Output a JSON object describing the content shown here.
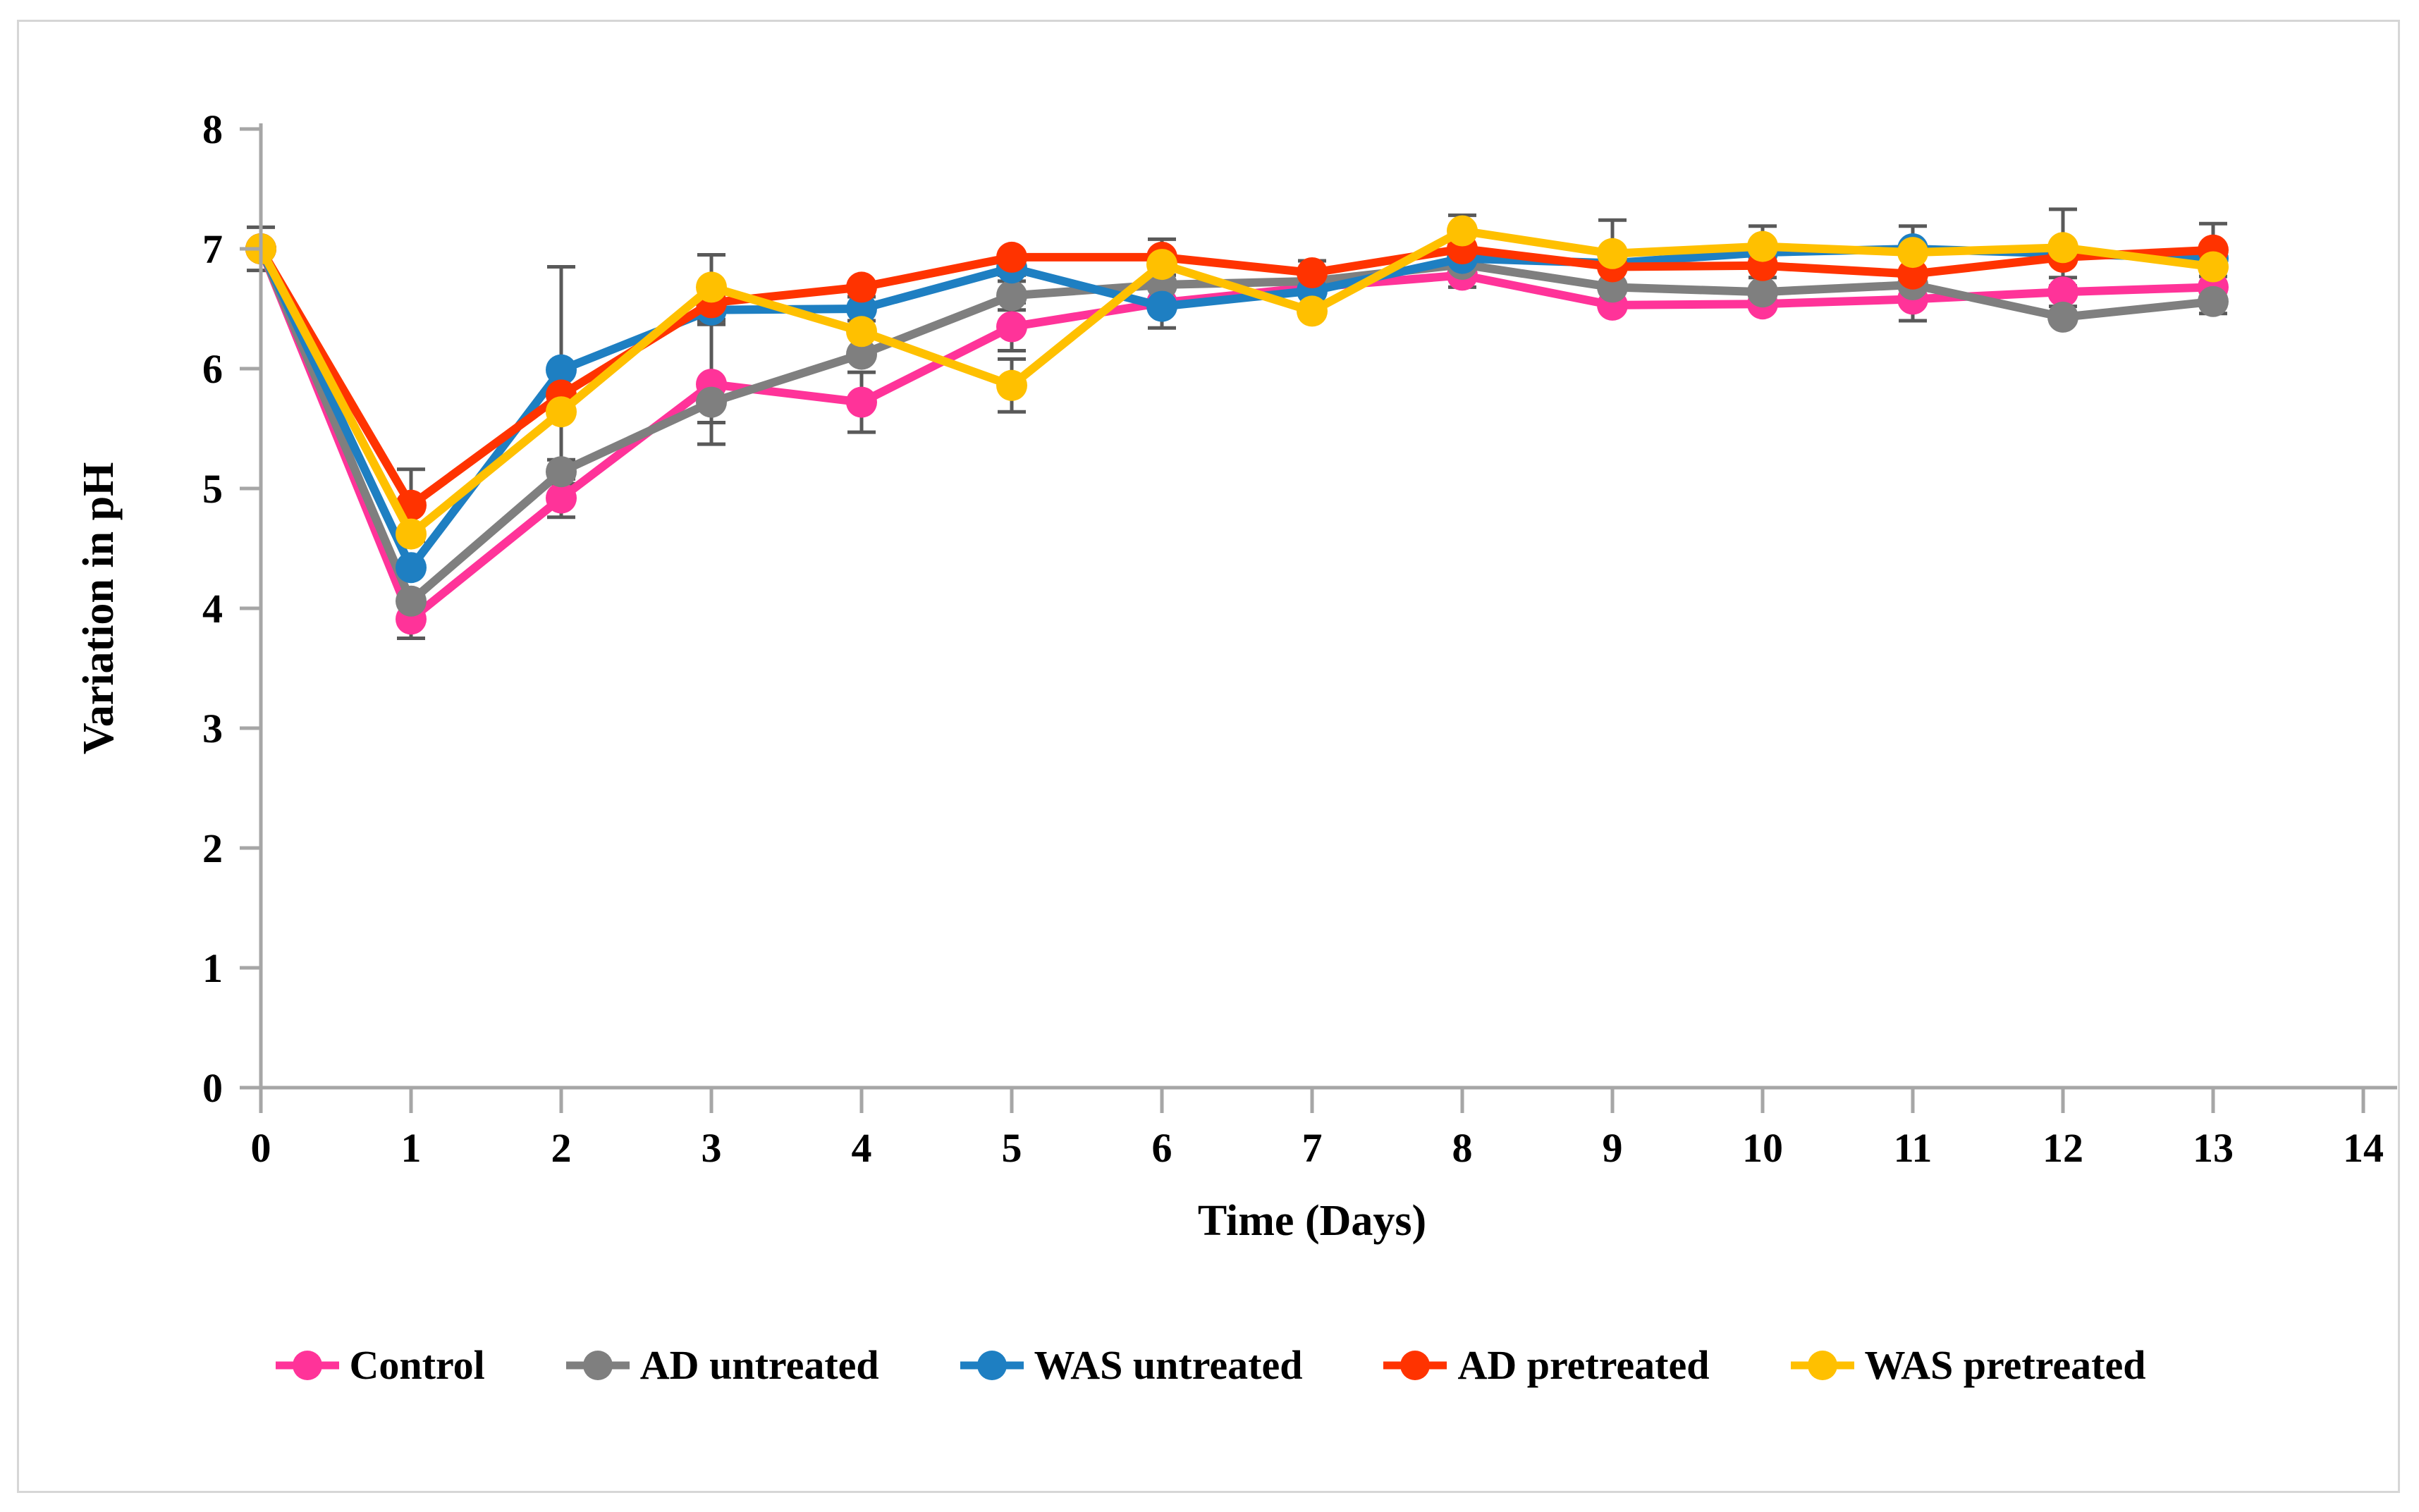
{
  "chart_data": {
    "type": "line",
    "title": "",
    "xlabel": "Time (Days)",
    "ylabel": "Variation in pH",
    "x": [
      0,
      1,
      2,
      3,
      4,
      5,
      6,
      7,
      8,
      9,
      10,
      11,
      12,
      13
    ],
    "xlim": [
      0,
      14
    ],
    "ylim": [
      0,
      8
    ],
    "x_ticks": [
      "0",
      "1",
      "2",
      "3",
      "4",
      "5",
      "6",
      "7",
      "8",
      "9",
      "10",
      "11",
      "12",
      "13",
      "14"
    ],
    "y_ticks": [
      "0",
      "1",
      "2",
      "3",
      "4",
      "5",
      "6",
      "7",
      "8"
    ],
    "grid": false,
    "legend_position": "bottom",
    "marker": "circle",
    "series": [
      {
        "name": "Control",
        "color": "#FF3399",
        "values": [
          7.0,
          3.91,
          4.92,
          5.87,
          5.72,
          6.35,
          6.55,
          6.68,
          6.78,
          6.53,
          6.54,
          6.58,
          6.64,
          6.68
        ]
      },
      {
        "name": "AD untreated",
        "color": "#7F7F7F",
        "values": [
          7.0,
          4.06,
          5.14,
          5.72,
          6.12,
          6.61,
          6.7,
          6.73,
          6.87,
          6.68,
          6.64,
          6.7,
          6.43,
          6.56
        ]
      },
      {
        "name": "WAS untreated",
        "color": "#1E7FC2",
        "values": [
          7.0,
          4.34,
          5.99,
          6.49,
          6.5,
          6.84,
          6.52,
          6.65,
          6.92,
          6.88,
          6.97,
          7.0,
          6.96,
          6.92
        ]
      },
      {
        "name": "AD pretreated",
        "color": "#FF3300",
        "values": [
          7.0,
          4.86,
          5.78,
          6.55,
          6.68,
          6.93,
          6.93,
          6.8,
          7.0,
          6.85,
          6.86,
          6.79,
          6.93,
          6.99
        ]
      },
      {
        "name": "WAS pretreated",
        "color": "#FFC000",
        "values": [
          7.0,
          4.62,
          5.64,
          6.68,
          6.31,
          5.86,
          6.87,
          6.48,
          7.15,
          6.96,
          7.02,
          6.97,
          7.01,
          6.85
        ]
      }
    ],
    "error_bars": [
      {
        "series": "WAS pretreated",
        "day": 0,
        "value": 0.18
      },
      {
        "series": "AD pretreated",
        "day": 1,
        "value": 0.3
      },
      {
        "series": "Control",
        "day": 1,
        "value": 0.16
      },
      {
        "series": "WAS untreated",
        "day": 2,
        "value": 0.86
      },
      {
        "series": "Control",
        "day": 2,
        "value": 0.16
      },
      {
        "series": "AD untreated",
        "day": 2,
        "value": 0.1
      },
      {
        "series": "WAS pretreated",
        "day": 3,
        "value": 0.27
      },
      {
        "series": "AD pretreated",
        "day": 3,
        "value": 0.15
      },
      {
        "series": "WAS untreated",
        "day": 3,
        "value": 0.12
      },
      {
        "series": "Control",
        "day": 3,
        "value": 0.5
      },
      {
        "series": "AD untreated",
        "day": 3,
        "value": 0.17
      },
      {
        "series": "Control",
        "day": 4,
        "value": 0.25
      },
      {
        "series": "WAS untreated",
        "day": 4,
        "value": 0.1
      },
      {
        "series": "AD untreated",
        "day": 5,
        "value": 0.12
      },
      {
        "series": "Control",
        "day": 5,
        "value": 0.2
      },
      {
        "series": "WAS pretreated",
        "day": 5,
        "value": 0.22
      },
      {
        "series": "WAS untreated",
        "day": 5,
        "value": 0.06
      },
      {
        "series": "AD pretreated",
        "day": 6,
        "value": 0.15
      },
      {
        "series": "WAS untreated",
        "day": 6,
        "value": 0.18
      },
      {
        "series": "AD pretreated",
        "day": 7,
        "value": 0.1
      },
      {
        "series": "WAS pretreated",
        "day": 8,
        "value": 0.13
      },
      {
        "series": "Control",
        "day": 8,
        "value": 0.1
      },
      {
        "series": "WAS pretreated",
        "day": 9,
        "value": 0.28
      },
      {
        "series": "WAS pretreated",
        "day": 10,
        "value": 0.17
      },
      {
        "series": "AD untreated",
        "day": 10,
        "value": 0.12
      },
      {
        "series": "WAS pretreated",
        "day": 11,
        "value": 0.22
      },
      {
        "series": "Control",
        "day": 11,
        "value": 0.18
      },
      {
        "series": "WAS pretreated",
        "day": 12,
        "value": 0.32
      },
      {
        "series": "Control",
        "day": 12,
        "value": 0.12
      },
      {
        "series": "AD pretreated",
        "day": 13,
        "value": 0.22
      },
      {
        "series": "AD untreated",
        "day": 13,
        "value": 0.1
      }
    ]
  },
  "styles": {
    "axis_color": "#A6A6A6",
    "error_bar_color": "#595959",
    "text_color": "#000000",
    "frame_border_color": "#D6D6D6",
    "background": "#FFFFFF"
  }
}
